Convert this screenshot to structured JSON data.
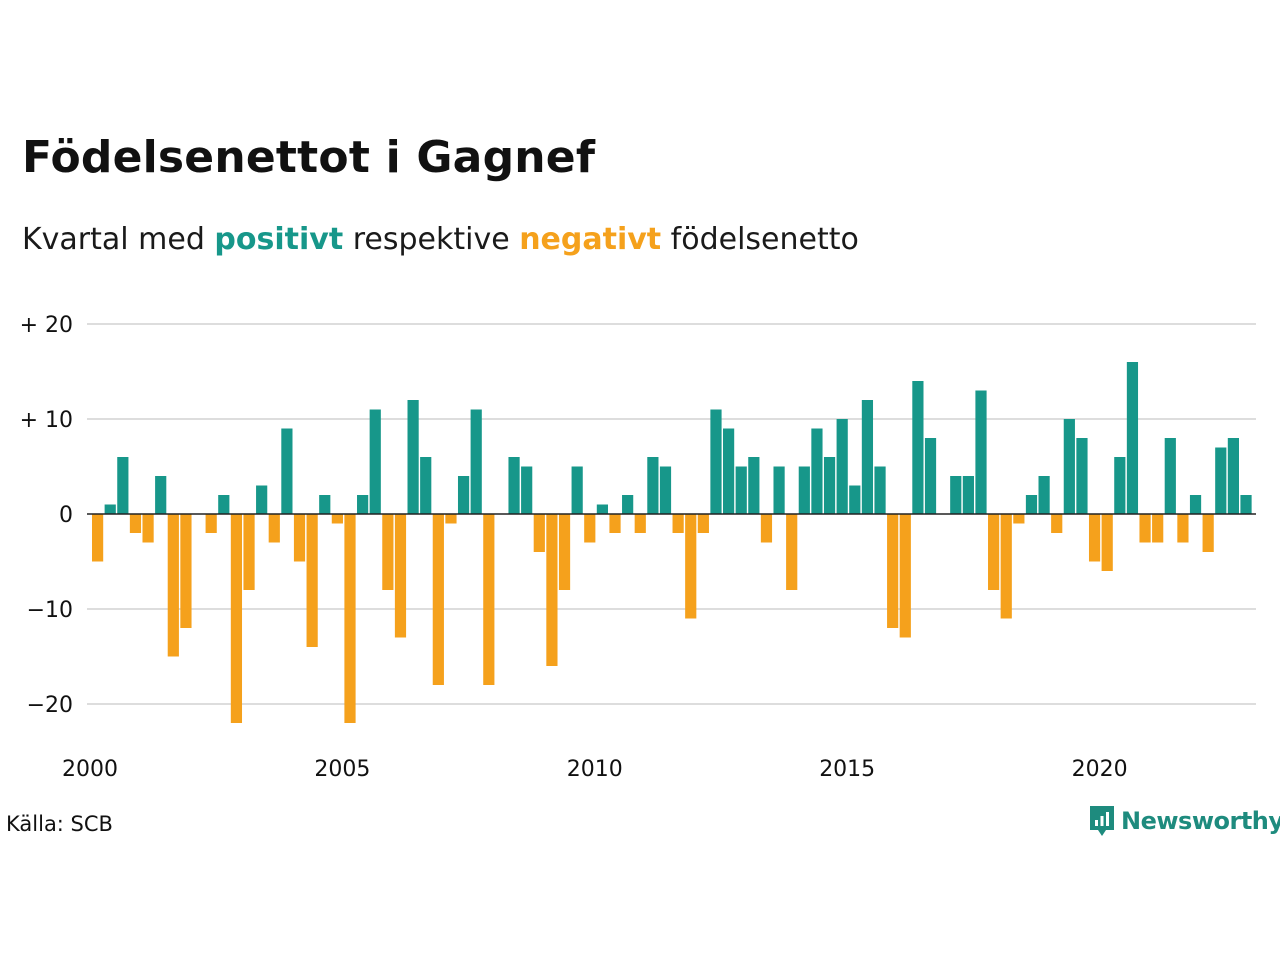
{
  "title": "Födelsenettot i Gagnef",
  "subtitle": {
    "prefix": "Kvartal med ",
    "positive_word": "positivt",
    "middle": " respektive ",
    "negative_word": "negativt",
    "suffix": " födelsenetto"
  },
  "source": "Källa: SCB",
  "logo": {
    "text": "Newsworthy",
    "icon": "newsworthy-chart-bubble-icon"
  },
  "colors": {
    "positive": "#17978a",
    "negative": "#f5a11c",
    "grid": "#dddddd",
    "zero_line": "#222222"
  },
  "chart_data": {
    "type": "bar",
    "x_start": "2000 Q1",
    "values": [
      -5,
      1,
      6,
      -2,
      -3,
      4,
      -15,
      -12,
      0,
      -2,
      2,
      -22,
      -8,
      3,
      -3,
      9,
      -5,
      -14,
      2,
      -1,
      -22,
      2,
      11,
      -8,
      -13,
      12,
      6,
      -18,
      -1,
      4,
      11,
      -18,
      0,
      6,
      5,
      -4,
      -16,
      -8,
      5,
      -3,
      1,
      -2,
      2,
      -2,
      6,
      5,
      -2,
      -11,
      -2,
      11,
      9,
      5,
      6,
      -3,
      5,
      -8,
      5,
      9,
      6,
      10,
      3,
      12,
      5,
      -12,
      -13,
      14,
      8,
      0,
      4,
      4,
      13,
      -8,
      -11,
      -1,
      2,
      4,
      -2,
      10,
      8,
      -5,
      -6,
      6,
      16,
      -3,
      -3,
      8,
      -3,
      2,
      -4,
      7,
      8,
      2
    ],
    "y_ticks": [
      {
        "value": 20,
        "label": "+ 20"
      },
      {
        "value": 10,
        "label": "+ 10"
      },
      {
        "value": 0,
        "label": "0"
      },
      {
        "value": -10,
        "label": "−10"
      },
      {
        "value": -20,
        "label": "−20"
      }
    ],
    "x_ticks": [
      {
        "year": 2000,
        "label": "2000"
      },
      {
        "year": 2005,
        "label": "2005"
      },
      {
        "year": 2010,
        "label": "2010"
      },
      {
        "year": 2015,
        "label": "2015"
      },
      {
        "year": 2020,
        "label": "2020"
      }
    ],
    "ylim": [
      -24,
      21
    ],
    "grid": true,
    "legend": "in subtitle"
  }
}
